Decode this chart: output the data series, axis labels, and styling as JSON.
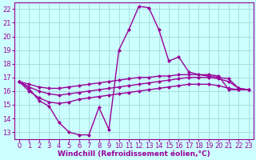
{
  "x": [
    0,
    1,
    2,
    3,
    4,
    5,
    6,
    7,
    8,
    9,
    10,
    11,
    12,
    13,
    14,
    15,
    16,
    17,
    18,
    19,
    20,
    21,
    22,
    23
  ],
  "windchill": [
    16.7,
    16.2,
    15.3,
    14.9,
    13.7,
    13.0,
    12.8,
    12.8,
    14.8,
    13.2,
    19.0,
    20.5,
    22.2,
    22.1,
    20.5,
    18.2,
    18.5,
    17.4,
    17.2,
    17.2,
    17.1,
    16.1,
    16.1,
    16.1
  ],
  "line_top": [
    16.7,
    16.5,
    16.3,
    16.2,
    16.2,
    16.3,
    16.4,
    16.5,
    16.6,
    16.7,
    16.8,
    16.9,
    17.0,
    17.0,
    17.1,
    17.1,
    17.2,
    17.2,
    17.2,
    17.1,
    17.0,
    16.9,
    16.2,
    16.1
  ],
  "line_mid": [
    16.7,
    16.3,
    16.0,
    15.8,
    15.7,
    15.8,
    15.9,
    16.0,
    16.1,
    16.2,
    16.3,
    16.4,
    16.5,
    16.6,
    16.7,
    16.8,
    16.9,
    17.0,
    17.0,
    17.0,
    16.9,
    16.7,
    16.2,
    16.1
  ],
  "line_bot": [
    16.7,
    16.0,
    15.5,
    15.2,
    15.1,
    15.2,
    15.4,
    15.5,
    15.6,
    15.7,
    15.8,
    15.9,
    16.0,
    16.1,
    16.2,
    16.3,
    16.4,
    16.5,
    16.5,
    16.5,
    16.4,
    16.2,
    16.1,
    16.1
  ],
  "color": "#990099",
  "bg_color": "#ccffff",
  "grid_color": "#aadddd",
  "xlim": [
    -0.5,
    23.5
  ],
  "ylim": [
    12.5,
    22.5
  ],
  "yticks": [
    13,
    14,
    15,
    16,
    17,
    18,
    19,
    20,
    21,
    22
  ],
  "xticks": [
    0,
    1,
    2,
    3,
    4,
    5,
    6,
    7,
    8,
    9,
    10,
    11,
    12,
    13,
    14,
    15,
    16,
    17,
    18,
    19,
    20,
    21,
    22,
    23
  ],
  "xlabel": "Windchill (Refroidissement éolien,°C)",
  "xlabel_fontsize": 6.5,
  "tick_fontsize": 6.0,
  "line_width": 1.0,
  "marker": "D",
  "marker_size": 2.0
}
